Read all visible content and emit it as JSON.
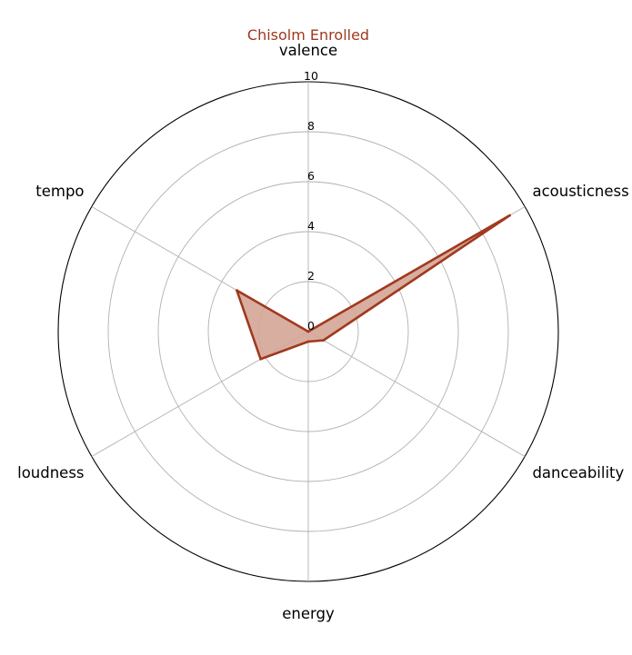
{
  "chart_data": {
    "type": "radar",
    "title": "Chisolm Enrolled",
    "axes": [
      "valence",
      "acousticness",
      "danceability",
      "energy",
      "loudness",
      "tempo"
    ],
    "series": [
      {
        "values": [
          0.0,
          9.3,
          0.7,
          0.4,
          2.2,
          3.3
        ]
      }
    ],
    "rlim": [
      0,
      10
    ],
    "rticks": [
      0,
      2,
      4,
      6,
      8,
      10
    ],
    "grid": true,
    "colors": {
      "title": "#a0391e",
      "line": "#a0391e",
      "fill": "#d4a597",
      "grid": "#b0b0b0",
      "frame": "#000000"
    }
  }
}
